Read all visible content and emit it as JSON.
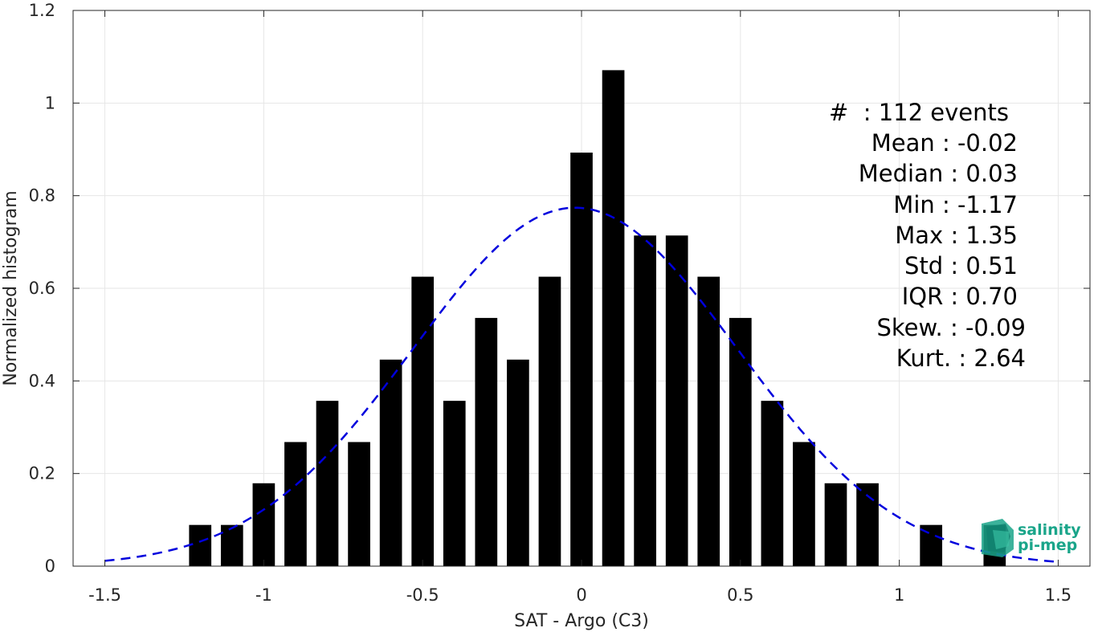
{
  "chart_data": {
    "type": "bar",
    "xlabel": "SAT - Argo (C3)",
    "ylabel": "Normalized histogram",
    "xlim": [
      -1.6,
      1.6
    ],
    "ylim": [
      0,
      1.2
    ],
    "xticks": [
      -1.5,
      -1,
      -0.5,
      0,
      0.5,
      1,
      1.5
    ],
    "xtick_labels": [
      "-1.5",
      "-1",
      "-0.5",
      "0",
      "0.5",
      "1",
      "1.5"
    ],
    "yticks": [
      0,
      0.2,
      0.4,
      0.6,
      0.8,
      1,
      1.2
    ],
    "ytick_labels": [
      "0",
      "0.2",
      "0.4",
      "0.6",
      "0.8",
      "1",
      "1.2"
    ],
    "grid": true,
    "bar_width": 0.07,
    "bar_color": "#000000",
    "bins": [
      -1.2,
      -1.1,
      -1.0,
      -0.9,
      -0.8,
      -0.7,
      -0.6,
      -0.5,
      -0.4,
      -0.3,
      -0.2,
      -0.1,
      0.0,
      0.1,
      0.2,
      0.3,
      0.4,
      0.5,
      0.6,
      0.7,
      0.8,
      0.9,
      1.0,
      1.1,
      1.2,
      1.3
    ],
    "values": [
      0.089,
      0.089,
      0.179,
      0.268,
      0.357,
      0.268,
      0.446,
      0.625,
      0.357,
      0.536,
      0.446,
      0.625,
      0.893,
      1.071,
      0.714,
      0.714,
      0.625,
      0.536,
      0.357,
      0.268,
      0.179,
      0.179,
      0,
      0.089,
      0,
      0.089
    ],
    "fit": {
      "type": "normal",
      "mean": -0.02,
      "std": 0.51,
      "xrange": [
        -1.5,
        1.5
      ],
      "color": "#0000dd",
      "style": "dashed"
    },
    "stats": [
      "#  : 112 events",
      "Mean : -0.02",
      "Median : 0.03",
      "Min : -1.17",
      "Max : 1.35",
      "Std : 0.51",
      "IQR : 0.70",
      "Skew. : -0.09",
      "Kurt. : 2.64"
    ]
  },
  "logo": {
    "line1": "salinity",
    "line2": "pi-mep",
    "color": "#1aa58a"
  }
}
